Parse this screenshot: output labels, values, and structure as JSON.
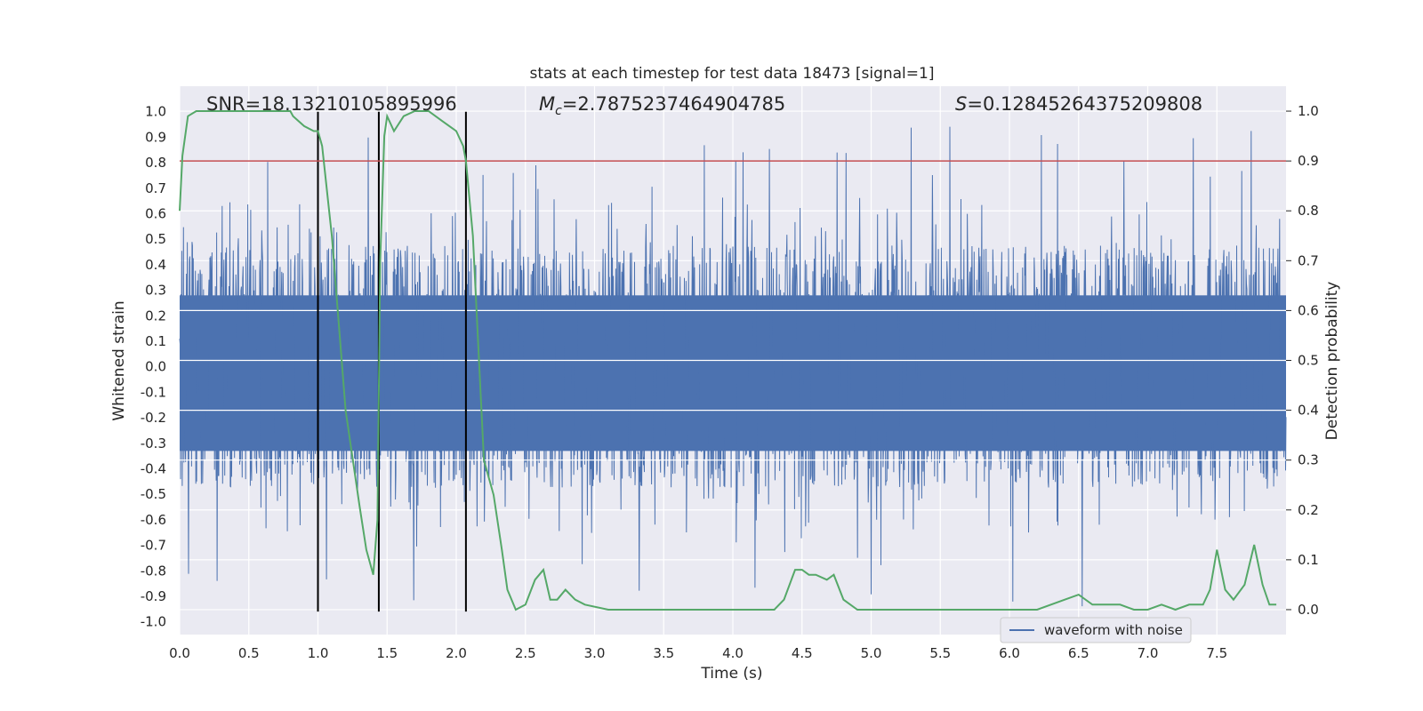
{
  "chart_data": {
    "type": "line",
    "title": "stats at each timestep for test data 18473 [signal=1]",
    "xlabel": "Time (s)",
    "ylabel_left": "Whitened strain",
    "ylabel_right": "Detection probability",
    "xlim": [
      0,
      8
    ],
    "ylim_left": [
      -1.05,
      1.1
    ],
    "ylim_right": [
      -0.05,
      1.05
    ],
    "x_ticks": [
      "0.0",
      "0.5",
      "1.0",
      "1.5",
      "2.0",
      "2.5",
      "3.0",
      "3.5",
      "4.0",
      "4.5",
      "5.0",
      "5.5",
      "6.0",
      "6.5",
      "7.0",
      "7.5"
    ],
    "y_ticks_left": [
      "1.0",
      "0.9",
      "0.8",
      "0.7",
      "0.6",
      "0.5",
      "0.4",
      "0.3",
      "0.2",
      "0.1",
      "0.0",
      "-0.1",
      "-0.2",
      "-0.3",
      "-0.4",
      "-0.5",
      "-0.6",
      "-0.7",
      "-0.8",
      "-0.9",
      "-1.0"
    ],
    "y_ticks_right": [
      "1.0",
      "0.9",
      "0.8",
      "0.7",
      "0.6",
      "0.5",
      "0.4",
      "0.3",
      "0.2",
      "0.1",
      "0.0"
    ],
    "annotations": {
      "snr": "SNR=18.13210105895996",
      "mc_symbol": "M",
      "mc_sub": "c",
      "mc_value": "=2.7875237464904785",
      "s_symbol": "S",
      "s_value": "=0.12845264375209808"
    },
    "threshold_right": 0.9,
    "vertical_lines_x": [
      1.0,
      1.44,
      2.07
    ],
    "series": [
      {
        "name": "waveform with noise",
        "color": "#4c72b0",
        "axis": "left",
        "description_envelope": "dense noisy strain, mostly within about -0.5..0.6 with spikes to about +/-0.95"
      },
      {
        "axis": "right",
        "color": "#55a868",
        "x": [
          0.0,
          0.02,
          0.06,
          0.12,
          0.2,
          0.4,
          0.6,
          0.8,
          0.82,
          0.9,
          0.97,
          1.0,
          1.03,
          1.1,
          1.2,
          1.3,
          1.35,
          1.4,
          1.43,
          1.45,
          1.48,
          1.5,
          1.55,
          1.62,
          1.7,
          1.8,
          1.9,
          2.0,
          2.05,
          2.07,
          2.12,
          2.2,
          2.27,
          2.33,
          2.37,
          2.43,
          2.5,
          2.57,
          2.63,
          2.68,
          2.73,
          2.79,
          2.86,
          2.93,
          3.1,
          3.2,
          3.35,
          3.5,
          3.7,
          3.85,
          3.97,
          4.05,
          4.2,
          4.3,
          4.37,
          4.45,
          4.5,
          4.55,
          4.6,
          4.68,
          4.73,
          4.8,
          4.9,
          5.0,
          5.2,
          5.5,
          5.8,
          6.0,
          6.2,
          6.4,
          6.5,
          6.6,
          6.8,
          6.9,
          7.0,
          7.1,
          7.2,
          7.3,
          7.4,
          7.45,
          7.5,
          7.56,
          7.62,
          7.7,
          7.77,
          7.83,
          7.88,
          7.93
        ],
        "y": [
          0.8,
          0.91,
          0.99,
          1.0,
          1.0,
          1.0,
          1.0,
          1.0,
          0.99,
          0.97,
          0.96,
          0.96,
          0.93,
          0.75,
          0.4,
          0.21,
          0.12,
          0.07,
          0.18,
          0.7,
          0.95,
          0.99,
          0.96,
          0.99,
          1.0,
          1.0,
          0.98,
          0.96,
          0.93,
          0.9,
          0.75,
          0.3,
          0.23,
          0.12,
          0.04,
          0.0,
          0.01,
          0.06,
          0.08,
          0.02,
          0.02,
          0.04,
          0.02,
          0.01,
          0.0,
          0.0,
          0.0,
          0.0,
          0.0,
          0.0,
          0.0,
          0.0,
          0.0,
          0.0,
          0.02,
          0.08,
          0.08,
          0.07,
          0.07,
          0.06,
          0.07,
          0.02,
          0.0,
          0.0,
          0.0,
          0.0,
          0.0,
          0.0,
          0.0,
          0.02,
          0.03,
          0.01,
          0.01,
          0.0,
          0.0,
          0.01,
          0.0,
          0.01,
          0.01,
          0.04,
          0.12,
          0.04,
          0.02,
          0.05,
          0.13,
          0.05,
          0.01,
          0.01
        ]
      },
      {
        "axis": "right",
        "color": "#c44e52",
        "type": "hline",
        "y": 0.9
      }
    ],
    "legend": {
      "position": "lower-right",
      "entries": [
        "waveform with noise"
      ]
    },
    "grid": true,
    "style": {
      "background": "#eaeaf2",
      "grid_color": "#ffffff",
      "vline_color": "#000000"
    }
  }
}
